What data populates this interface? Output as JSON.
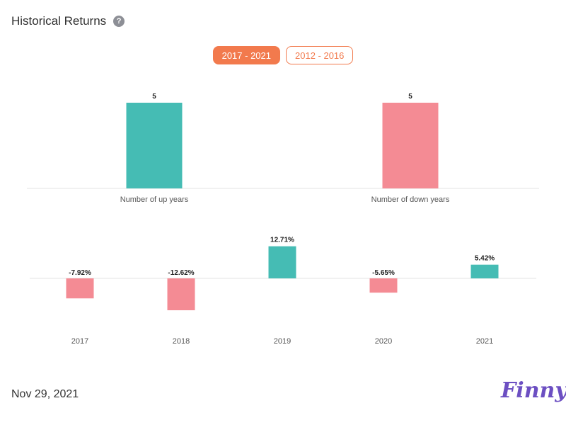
{
  "header": {
    "title": "Historical Returns",
    "help_icon": "question-circle-icon"
  },
  "tabs": [
    {
      "label": "2017 - 2021",
      "active": true
    },
    {
      "label": "2012 - 2016",
      "active": false
    }
  ],
  "colors": {
    "up": "#45bcb4",
    "down": "#f48b94",
    "accent": "#f27a4d",
    "brand": "#6c4fc2"
  },
  "chart_data": [
    {
      "type": "bar",
      "categories": [
        "Number of up years",
        "Number of down years"
      ],
      "values": [
        5,
        5
      ],
      "value_labels": [
        "5",
        "5"
      ],
      "ylim": [
        0,
        5
      ],
      "grid": false
    },
    {
      "type": "bar",
      "categories": [
        "2017",
        "2018",
        "2019",
        "2020",
        "2021"
      ],
      "values": [
        -7.92,
        -12.62,
        12.71,
        -5.65,
        5.42
      ],
      "value_labels": [
        "-7.92%",
        "-12.62%",
        "12.71%",
        "-5.65%",
        "5.42%"
      ],
      "ylim": [
        -12.62,
        12.71
      ],
      "grid": false
    }
  ],
  "footer": {
    "date": "Nov 29, 2021",
    "logo_text": "Finny"
  }
}
